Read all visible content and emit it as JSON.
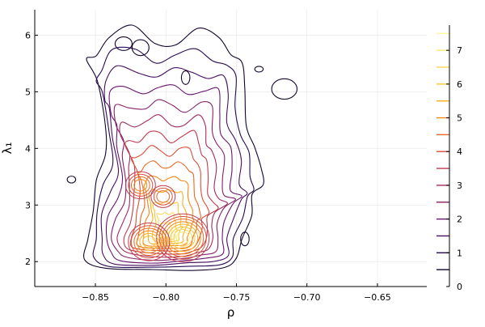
{
  "chart_data": {
    "type": "contour",
    "xlabel": "ρ",
    "ylabel": "λ₁",
    "xlim": [
      -0.893,
      -0.615
    ],
    "ylim": [
      1.56,
      6.45
    ],
    "xticks": [
      -0.85,
      -0.8,
      -0.75,
      -0.7,
      -0.65
    ],
    "xtick_labels": [
      "−0.85",
      "−0.80",
      "−0.75",
      "−0.70",
      "−0.65"
    ],
    "yticks": [
      2,
      3,
      4,
      5,
      6
    ],
    "ytick_labels": [
      "2",
      "3",
      "4",
      "5",
      "6"
    ],
    "grid": true,
    "colorbar": {
      "range": [
        0,
        7.7
      ],
      "ticks": [
        0,
        1,
        2,
        3,
        4,
        5,
        6,
        7
      ],
      "tick_labels": [
        "0",
        "1",
        "2",
        "3",
        "4",
        "5",
        "6",
        "7"
      ],
      "levels": [
        0.5,
        1.0,
        1.5,
        2.0,
        2.5,
        3.0,
        3.5,
        4.0,
        4.5,
        5.0,
        5.5,
        6.0,
        6.5,
        7.0,
        7.5
      ],
      "colormap": "inferno"
    },
    "density_peaks": [
      {
        "x": -0.8,
        "y": 2.45,
        "level": 7.6
      },
      {
        "x": -0.788,
        "y": 2.42,
        "level": 7.0
      },
      {
        "x": -0.812,
        "y": 2.35,
        "level": 6.2
      },
      {
        "x": -0.818,
        "y": 3.35,
        "level": 5.2
      },
      {
        "x": -0.802,
        "y": 3.15,
        "level": 4.5
      }
    ],
    "outer_contour_level": 0.5,
    "outer_contour": [
      [
        -0.842,
        1.88
      ],
      [
        -0.855,
        2.05
      ],
      [
        -0.857,
        2.4
      ],
      [
        -0.853,
        2.9
      ],
      [
        -0.847,
        3.4
      ],
      [
        -0.843,
        3.9
      ],
      [
        -0.845,
        4.5
      ],
      [
        -0.847,
        5.1
      ],
      [
        -0.855,
        5.5
      ],
      [
        -0.852,
        5.8
      ],
      [
        -0.84,
        5.93
      ],
      [
        -0.823,
        6.02
      ],
      [
        -0.808,
        5.98
      ],
      [
        -0.793,
        5.9
      ],
      [
        -0.778,
        5.95
      ],
      [
        -0.762,
        6.0
      ],
      [
        -0.752,
        5.8
      ],
      [
        -0.748,
        5.4
      ],
      [
        -0.745,
        5.0
      ],
      [
        -0.74,
        4.5
      ],
      [
        -0.738,
        4.0
      ],
      [
        -0.735,
        3.6
      ],
      [
        -0.728,
        3.4
      ],
      [
        -0.738,
        3.2
      ],
      [
        -0.742,
        2.8
      ],
      [
        -0.745,
        2.4
      ],
      [
        -0.748,
        2.05
      ],
      [
        -0.76,
        1.92
      ],
      [
        -0.78,
        1.85
      ],
      [
        -0.81,
        1.83
      ]
    ],
    "outer_islands": [
      {
        "x": -0.867,
        "y": 3.45,
        "rx": 0.003,
        "ry": 0.06
      },
      {
        "x": -0.734,
        "y": 5.4,
        "rx": 0.003,
        "ry": 0.05
      },
      {
        "x": -0.716,
        "y": 5.05,
        "rx": 0.009,
        "ry": 0.18
      },
      {
        "x": -0.786,
        "y": 5.25,
        "rx": 0.003,
        "ry": 0.12
      },
      {
        "x": -0.818,
        "y": 5.78,
        "rx": 0.006,
        "ry": 0.14
      },
      {
        "x": -0.83,
        "y": 5.85,
        "rx": 0.006,
        "ry": 0.12
      },
      {
        "x": -0.744,
        "y": 2.4,
        "rx": 0.003,
        "ry": 0.12
      }
    ]
  }
}
